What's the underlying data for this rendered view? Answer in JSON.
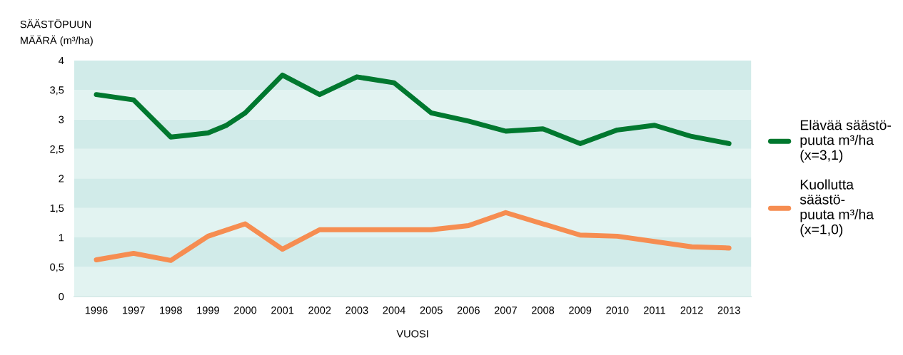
{
  "chart_data": {
    "type": "line",
    "ylabel": "SÄÄSTÖPUUN\nMÄÄRÄ (m³/ha)",
    "xlabel": "VUOSI",
    "xlim": [
      1995.4,
      2013.6
    ],
    "xticks": [
      1996,
      1997,
      1998,
      1999,
      2000,
      2001,
      2002,
      2003,
      2004,
      2005,
      2006,
      2007,
      2008,
      2009,
      2010,
      2011,
      2012,
      2013
    ],
    "ylim": [
      0,
      4
    ],
    "yticks": [
      0,
      {
        "value": 0.5,
        "label": "0,5"
      },
      1,
      {
        "value": 1.5,
        "label": "1,5"
      },
      2,
      {
        "value": 2.5,
        "label": "2,5"
      },
      3,
      {
        "value": 3.5,
        "label": "3,5"
      },
      4
    ],
    "bands": [
      {
        "axis": "y",
        "from": 0,
        "to": 0.5,
        "color": "#e2f3f1"
      },
      {
        "axis": "y",
        "from": 0.5,
        "to": 1,
        "color": "#d1ebe9"
      },
      {
        "axis": "y",
        "from": 1,
        "to": 1.5,
        "color": "#e2f3f1"
      },
      {
        "axis": "y",
        "from": 1.5,
        "to": 2,
        "color": "#d1ebe9"
      },
      {
        "axis": "y",
        "from": 2,
        "to": 2.5,
        "color": "#e2f3f1"
      },
      {
        "axis": "y",
        "from": 2.5,
        "to": 3,
        "color": "#d1ebe9"
      },
      {
        "axis": "y",
        "from": 3,
        "to": 3.5,
        "color": "#e2f3f1"
      },
      {
        "axis": "y",
        "from": 3.5,
        "to": 4,
        "color": "#d1ebe9"
      }
    ],
    "grid": false,
    "legend": "right",
    "marker": "none",
    "line_style": "solid",
    "series": [
      {
        "name": "Elävää säästö-\npuuta m³/ha\n(x=3,1)",
        "color": "#00782f",
        "x": [
          1996,
          1997,
          1998,
          1999,
          1999.5,
          2000,
          2001,
          2002,
          2003,
          2004,
          2005,
          2006,
          2007,
          2008,
          2009,
          2010,
          2011,
          2012,
          2013
        ],
        "values": [
          3.42,
          3.33,
          2.7,
          2.77,
          2.9,
          3.11,
          3.75,
          3.42,
          3.72,
          3.62,
          3.11,
          2.97,
          2.8,
          2.84,
          2.59,
          2.82,
          2.9,
          2.71,
          2.59
        ]
      },
      {
        "name": "Kuollutta\nsäästö-\npuuta m³/ha\n(x=1,0)",
        "color": "#f68d51",
        "x": [
          1996,
          1997,
          1998,
          1999,
          2000,
          2001,
          2002,
          2003,
          2004,
          2005,
          2006,
          2007,
          2009,
          2010,
          2012,
          2013
        ],
        "values": [
          0.62,
          0.73,
          0.61,
          1.02,
          1.23,
          0.8,
          1.13,
          1.13,
          1.13,
          1.13,
          1.2,
          1.42,
          1.04,
          1.02,
          0.84,
          0.82
        ]
      }
    ]
  }
}
